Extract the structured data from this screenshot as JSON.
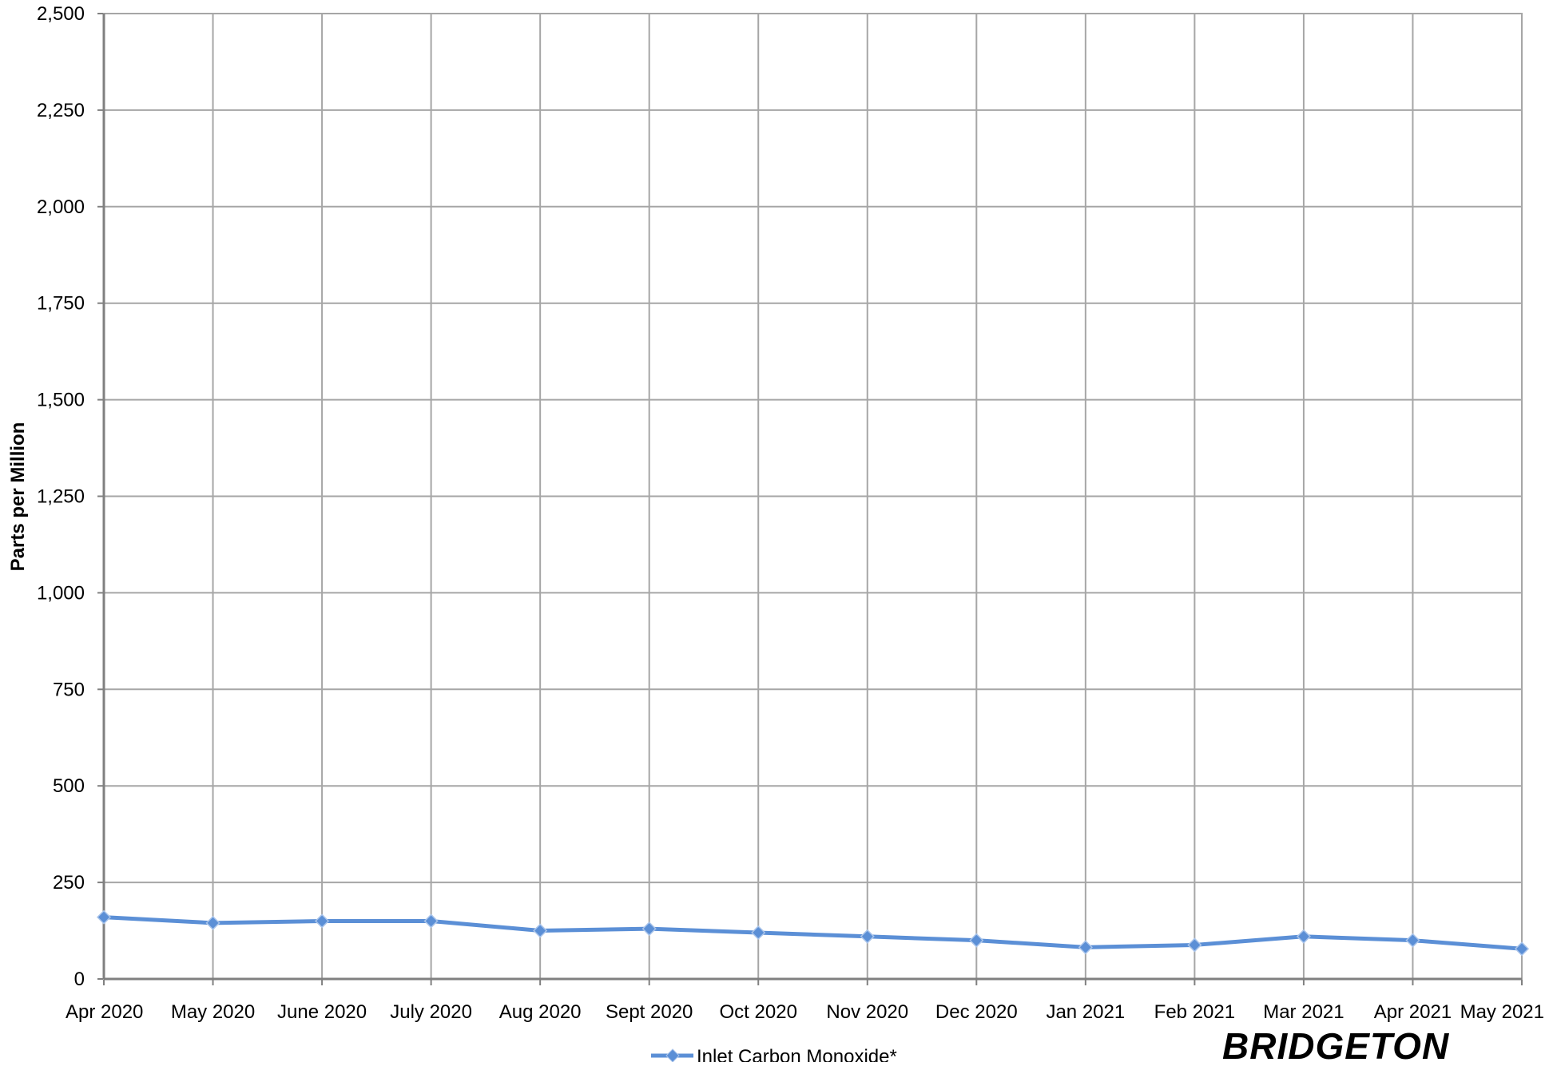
{
  "chart_data": {
    "type": "line",
    "title": "",
    "xlabel": "",
    "ylabel": "Parts per Million",
    "ylim": [
      0,
      2500
    ],
    "y_ticks": [
      0,
      250,
      500,
      750,
      1000,
      1250,
      1500,
      1750,
      2000,
      2250,
      2500
    ],
    "y_tick_labels": [
      "0",
      "250",
      "500",
      "750",
      "1,000",
      "1,250",
      "1,500",
      "1,750",
      "2,000",
      "2,250",
      "2,500"
    ],
    "grid": true,
    "legend_position": "bottom-center",
    "categories": [
      "Apr 2020",
      "May 2020",
      "June 2020",
      "July 2020",
      "Aug 2020",
      "Sept 2020",
      "Oct 2020",
      "Nov 2020",
      "Dec 2020",
      "Jan 2021",
      "Feb 2021",
      "Mar 2021",
      "Apr 2021",
      "May 2021"
    ],
    "series": [
      {
        "name": "Inlet Carbon Monoxide*",
        "color": "#5b8fd6",
        "marker": "diamond",
        "values": [
          160,
          145,
          150,
          150,
          125,
          130,
          120,
          110,
          100,
          82,
          88,
          110,
          100,
          78
        ]
      }
    ]
  },
  "branding": {
    "logo_text": "BRIDGETON",
    "logo_color": "#1f4e8c"
  }
}
